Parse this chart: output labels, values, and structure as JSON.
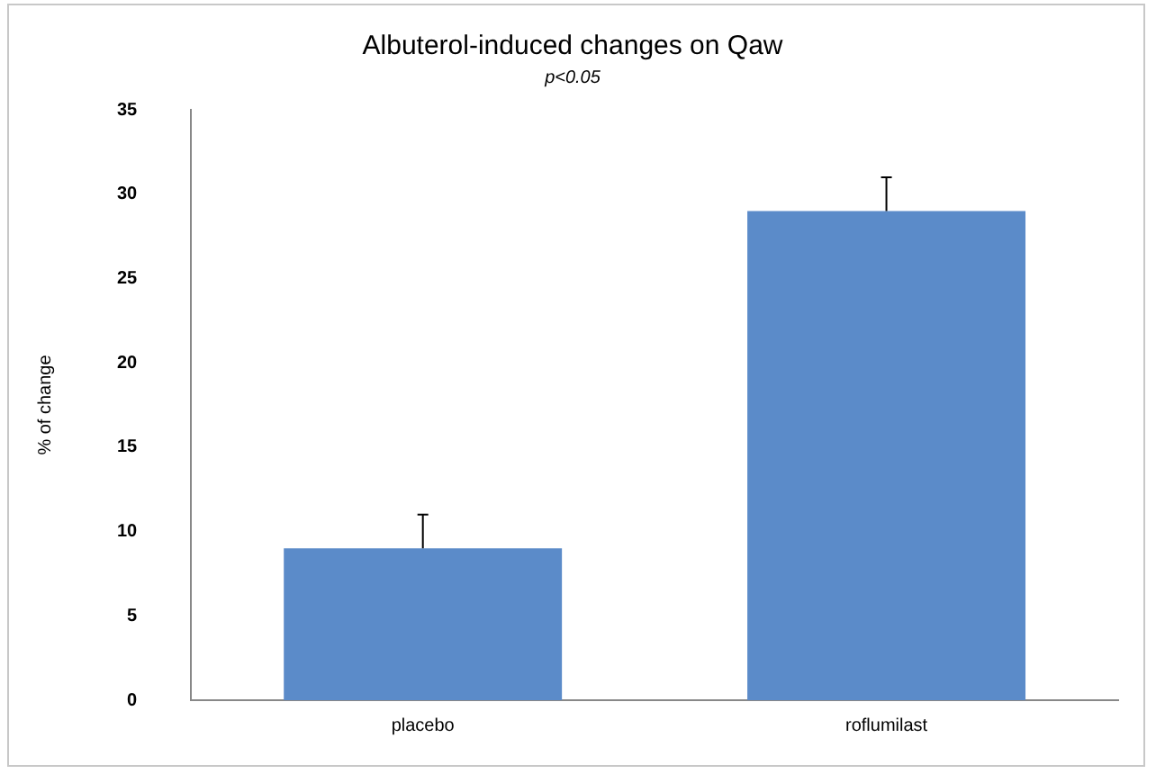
{
  "chart_data": {
    "type": "bar",
    "title": "Albuterol-induced changes on Qaw",
    "subtitle": "p<0.05",
    "ylabel": "% of change",
    "categories": [
      "placebo",
      "roflumilast"
    ],
    "values": [
      9,
      29
    ],
    "errors": [
      [
        9,
        11
      ],
      [
        29,
        31
      ]
    ],
    "color": "#5b8bc9",
    "ylim": [
      0,
      35
    ],
    "yticks": [
      0,
      5,
      10,
      15,
      20,
      25,
      30,
      35
    ],
    "grid": false,
    "legend": false
  }
}
